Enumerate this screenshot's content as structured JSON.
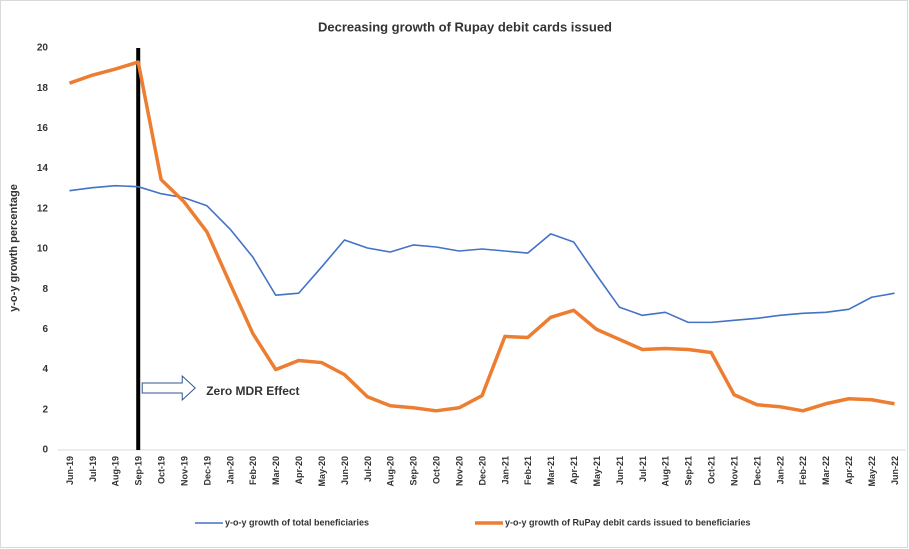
{
  "chart_data": {
    "type": "line",
    "title": "Decreasing growth of Rupay debit cards issued",
    "y_label": "y-o-y growth percentage",
    "categories": [
      "Jun-19",
      "Jul-19",
      "Aug-19",
      "Sep-19",
      "Oct-19",
      "Nov-19",
      "Dec-19",
      "Jan-20",
      "Feb-20",
      "Mar-20",
      "Apr-20",
      "May-20",
      "Jun-20",
      "Jul-20",
      "Aug-20",
      "Sep-20",
      "Oct-20",
      "Nov-20",
      "Dec-20",
      "Jan-21",
      "Feb-21",
      "Mar-21",
      "Apr-21",
      "May-21",
      "Jun-21",
      "Jul-21",
      "Aug-21",
      "Sep-21",
      "Oct-21",
      "Nov-21",
      "Dec-21",
      "Jan-22",
      "Feb-22",
      "Mar-22",
      "Apr-22",
      "May-22",
      "Jun-22"
    ],
    "series": [
      {
        "name": "y-o-y growth of total beneficiaries",
        "color": "#4472c4",
        "width": 1.6,
        "values": [
          12.9,
          13.05,
          13.15,
          13.1,
          12.75,
          12.55,
          12.15,
          11.0,
          9.6,
          7.7,
          7.8,
          9.1,
          10.45,
          10.05,
          9.85,
          10.2,
          10.1,
          9.9,
          10.0,
          9.9,
          9.8,
          10.75,
          10.35,
          8.7,
          7.1,
          6.7,
          6.85,
          6.35,
          6.35,
          6.45,
          6.55,
          6.7,
          6.8,
          6.85,
          7.0,
          7.6,
          7.8
        ]
      },
      {
        "name": "y-o-y growth of RuPay debit cards issued to beneficiaries",
        "color": "#ed7d31",
        "width": 3.5,
        "values": [
          18.25,
          18.65,
          18.95,
          19.3,
          13.45,
          12.35,
          10.85,
          8.3,
          5.8,
          4.0,
          4.45,
          4.35,
          3.75,
          2.65,
          2.2,
          2.1,
          1.95,
          2.1,
          2.7,
          5.65,
          5.6,
          6.6,
          6.95,
          6.0,
          5.5,
          5.0,
          5.05,
          5.0,
          4.85,
          2.75,
          2.25,
          2.15,
          1.95,
          2.3,
          2.55,
          2.5,
          2.3
        ]
      }
    ],
    "annotations": [
      {
        "text": "Zero MDR Effect",
        "x": "Sep-19"
      }
    ],
    "ylim": [
      0,
      20
    ],
    "yticks": [
      0,
      2,
      4,
      6,
      8,
      10,
      12,
      14,
      16,
      18,
      20
    ],
    "grid": false,
    "legend": "bottom"
  }
}
